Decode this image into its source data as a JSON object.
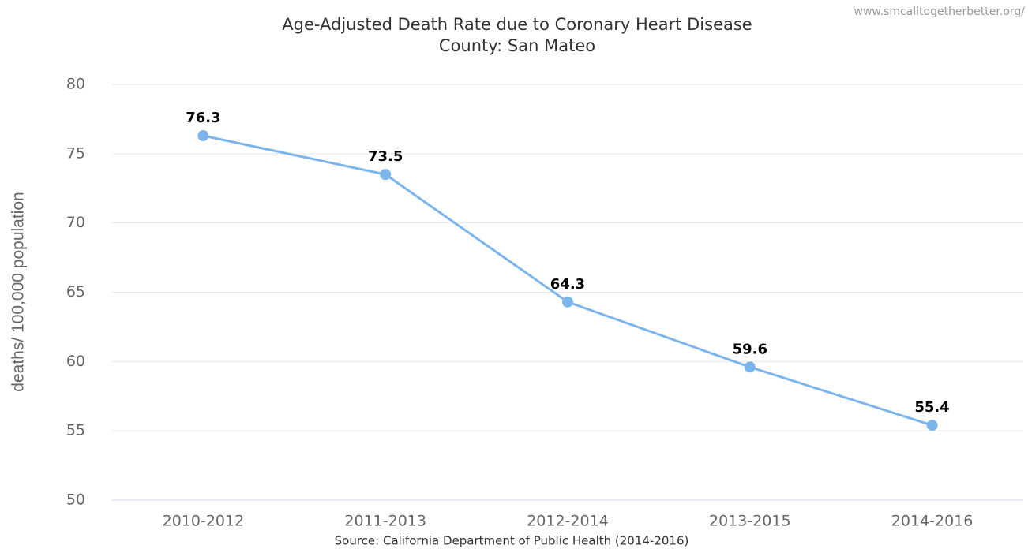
{
  "chart_data": {
    "type": "line",
    "title": "Age-Adjusted Death Rate due to Coronary Heart Disease",
    "subtitle": "County: San Mateo",
    "watermark": "www.smcalltogetherbetter.org/",
    "source": "Source: California Department of Public Health (2014-2016)",
    "y_label": "deaths/ 100,000 population",
    "categories": [
      "2010-2012",
      "2011-2013",
      "2012-2014",
      "2013-2015",
      "2014-2016"
    ],
    "series": [
      {
        "name": "San Mateo",
        "color": "#7cb5ec",
        "values": [
          76.3,
          73.5,
          64.3,
          59.6,
          55.4
        ]
      }
    ],
    "ylim": [
      50,
      80
    ],
    "yticks": [
      50,
      55,
      60,
      65,
      70,
      75,
      80
    ],
    "grid": true
  }
}
